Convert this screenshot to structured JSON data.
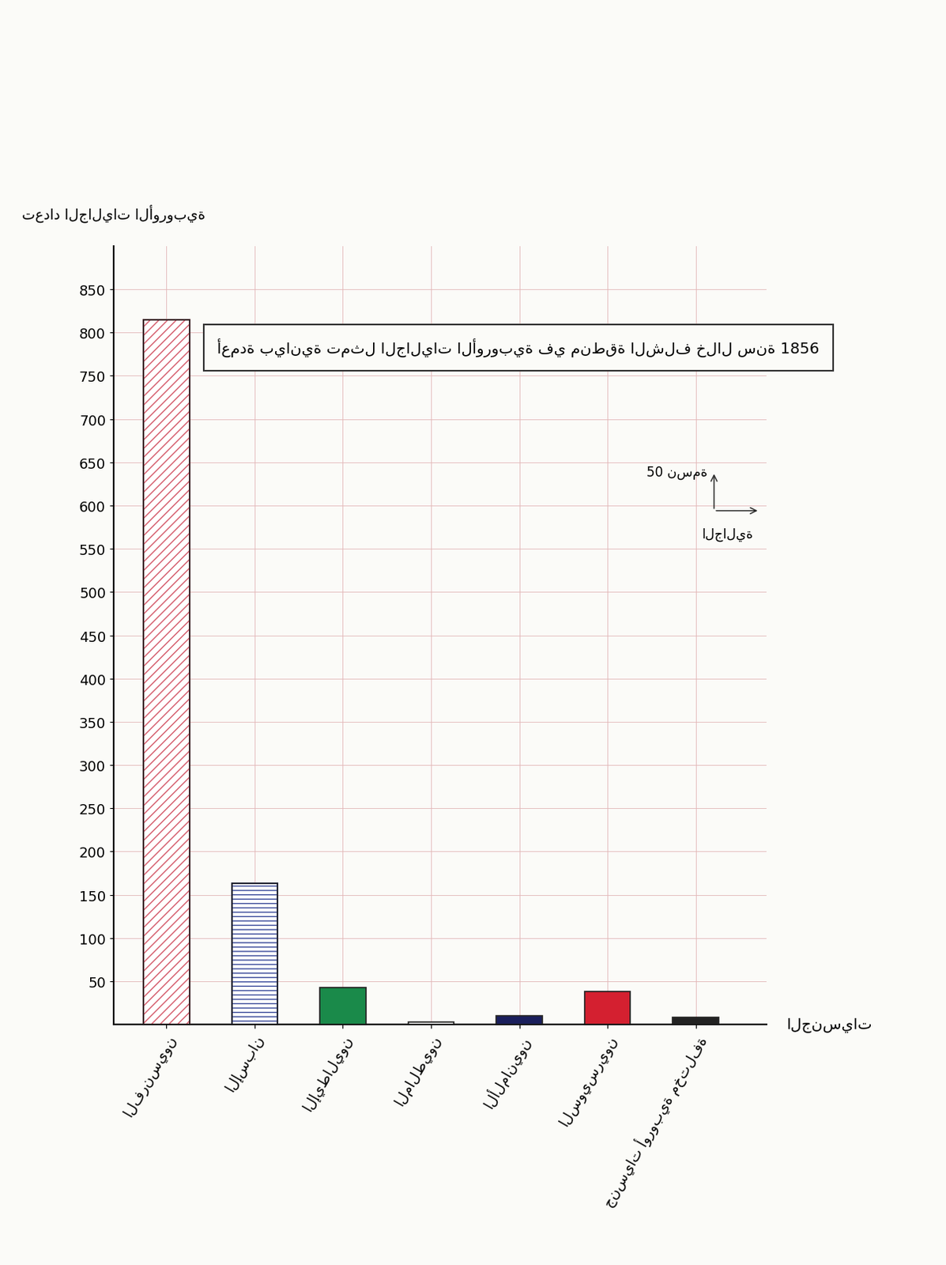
{
  "chart_data": {
    "type": "bar",
    "title": "أعمدة بيانية تمثل الجاليات الأوروبية في منطقة الشلف خلال سنة 1856",
    "x_label": "الجنسيات",
    "y_label": "تعداد الجاليات الأوروبية",
    "annotations": [
      "50 نسمة",
      "الجالية"
    ],
    "categories": [
      "الفرنسيون",
      "الإسبان",
      "الإيطاليون",
      "المالطيون",
      "الألمانيون",
      "السويسريون",
      "جنسيات أوروبية مختلفة"
    ],
    "values": [
      815,
      163,
      43,
      3,
      10,
      38,
      8
    ],
    "colors": [
      "#d45a6a",
      "#3a4a9a",
      "#1a8a4a",
      "#ffffff",
      "#1a1f5c",
      "#d42030",
      "#222222"
    ],
    "ylim": [
      0,
      900
    ],
    "yticks": [
      50,
      100,
      150,
      200,
      250,
      300,
      350,
      400,
      450,
      500,
      550,
      600,
      650,
      700,
      750,
      800,
      850
    ],
    "grid": true
  }
}
